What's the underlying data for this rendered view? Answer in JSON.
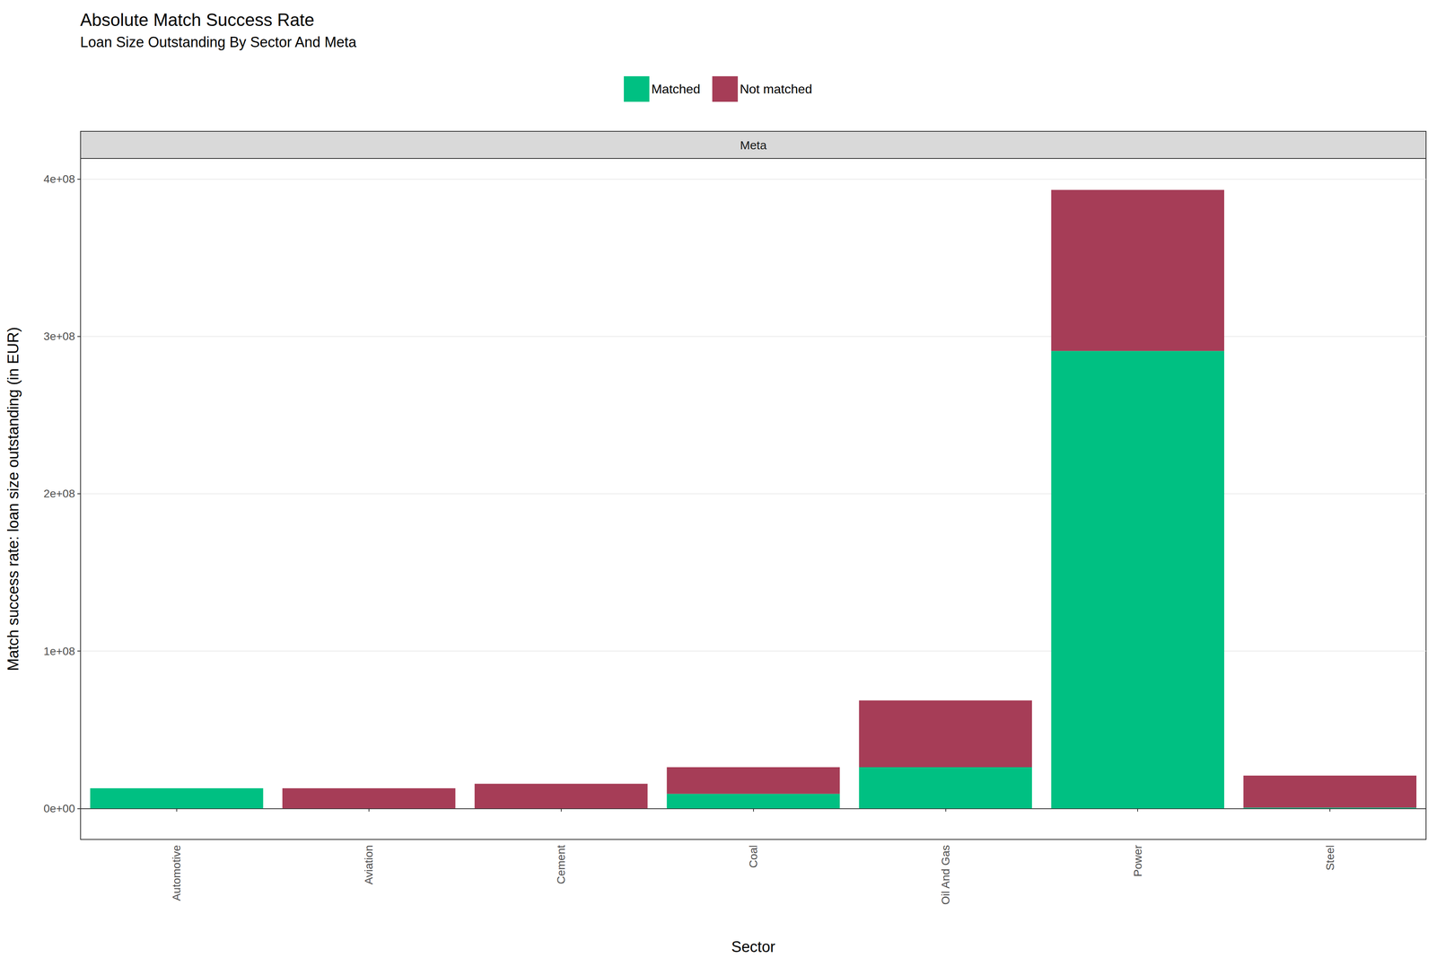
{
  "chart_data": {
    "type": "bar",
    "title": "Absolute Match Success Rate",
    "subtitle": "Loan Size Outstanding By Sector And Meta",
    "facet_label": "Meta",
    "x_label": "Sector",
    "y_label": "Match success rate: loan size outstanding (in EUR)",
    "categories": [
      "Automotive",
      "Aviation",
      "Cement",
      "Coal",
      "Oil And Gas",
      "Power",
      "Steel"
    ],
    "series": [
      {
        "name": "Matched",
        "color": "#00C082",
        "values": [
          12800000,
          0,
          0,
          9300000,
          26200000,
          290700000,
          500000
        ]
      },
      {
        "name": "Not matched",
        "color": "#A63D57",
        "values": [
          0,
          12800000,
          15700000,
          16900000,
          42400000,
          102300000,
          20400000
        ]
      }
    ],
    "stacked": true,
    "ylim": [
      -19700000,
      413000000
    ],
    "yticks": [
      {
        "value": 0,
        "label": "0e+00"
      },
      {
        "value": 100000000,
        "label": "1e+08"
      },
      {
        "value": 200000000,
        "label": "2e+08"
      },
      {
        "value": 300000000,
        "label": "3e+08"
      },
      {
        "value": 400000000,
        "label": "4e+08"
      }
    ],
    "grid": true,
    "legend": "top",
    "data_labels": false
  }
}
